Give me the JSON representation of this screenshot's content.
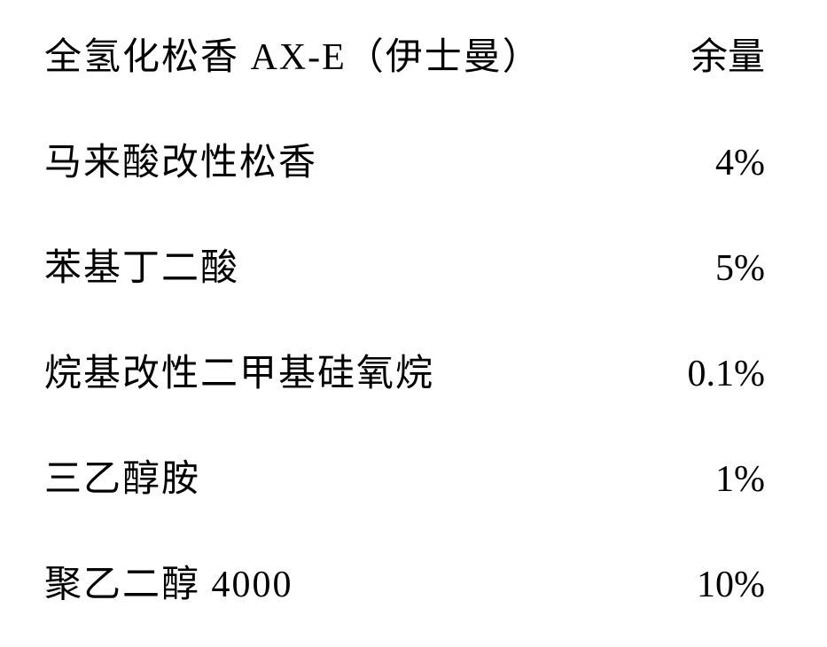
{
  "table": {
    "type": "table",
    "columns": [
      "label",
      "value"
    ],
    "rows": [
      {
        "label": "全氢化松香 AX-E（伊士曼）",
        "value": "余量"
      },
      {
        "label": "马来酸改性松香",
        "value": "4%"
      },
      {
        "label": "苯基丁二酸",
        "value": "5%"
      },
      {
        "label": "烷基改性二甲基硅氧烷",
        "value": "0.1%"
      },
      {
        "label": "三乙醇胺",
        "value": "1%"
      },
      {
        "label": "聚乙二醇 4000",
        "value": "10%"
      }
    ],
    "label_fontsize": 42,
    "value_fontsize": 42,
    "text_color": "#000000",
    "background_color": "#ffffff",
    "row_spacing": 58,
    "font_family": "SimSun"
  }
}
